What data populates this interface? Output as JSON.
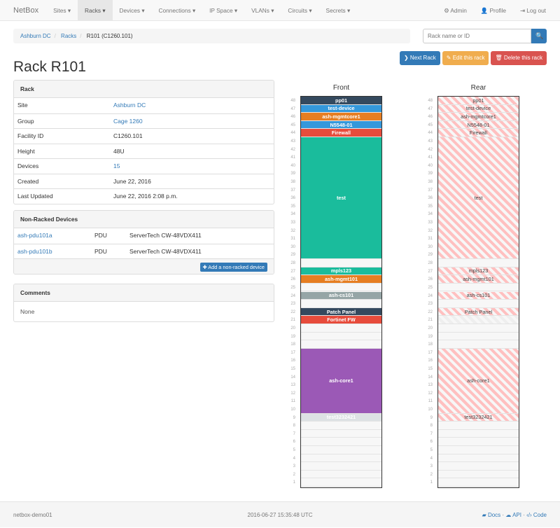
{
  "nav": {
    "brand": "NetBox",
    "items": [
      "Sites ▾",
      "Racks ▾",
      "Devices ▾",
      "Connections ▾",
      "IP Space ▾",
      "VLANs ▾",
      "Circuits ▾",
      "Secrets ▾"
    ],
    "active": 1,
    "admin": "⚙ Admin",
    "profile": "👤 Profile",
    "logout": "⇥ Log out"
  },
  "breadcrumb": [
    "Ashburn DC",
    "Racks",
    "R101 (C1260.101)"
  ],
  "search": {
    "placeholder": "Rack name or ID",
    "button": "🔍"
  },
  "actions": {
    "next": "❯ Next Rack",
    "edit": "✎ Edit this rack",
    "delete": "🗑 Delete this rack"
  },
  "title": "Rack R101",
  "rack_panel": {
    "title": "Rack",
    "rows": [
      {
        "k": "Site",
        "v": "Ashburn DC",
        "link": true
      },
      {
        "k": "Group",
        "v": "Cage 1260",
        "link": true
      },
      {
        "k": "Facility ID",
        "v": "C1260.101"
      },
      {
        "k": "Height",
        "v": "48U"
      },
      {
        "k": "Devices",
        "v": "15",
        "link": true
      },
      {
        "k": "Created",
        "v": "June 22, 2016"
      },
      {
        "k": "Last Updated",
        "v": "June 22, 2016 2:08 p.m."
      }
    ]
  },
  "nonracked": {
    "title": "Non-Racked Devices",
    "rows": [
      [
        "ash-pdu101a",
        "PDU",
        "ServerTech CW-48VDX411"
      ],
      [
        "ash-pdu101b",
        "PDU",
        "ServerTech CW-48VDX411"
      ]
    ],
    "add": "✚ Add a non-racked device"
  },
  "comments": {
    "title": "Comments",
    "body": "None"
  },
  "elevation": {
    "height_u": 48,
    "front_title": "Front",
    "rear_title": "Rear",
    "front": [
      {
        "name": "pp01",
        "top": 48,
        "u": 1,
        "color": "#34495e"
      },
      {
        "name": "test-device",
        "top": 47,
        "u": 1,
        "color": "#3498db"
      },
      {
        "name": "ash-mgmtcore1",
        "top": 46,
        "u": 1,
        "color": "#e67e22"
      },
      {
        "name": "N5548-01",
        "top": 45,
        "u": 1,
        "color": "#3498db"
      },
      {
        "name": "Firewall",
        "top": 44,
        "u": 1,
        "color": "#e74c3c"
      },
      {
        "name": "test",
        "top": 43,
        "u": 15,
        "color": "#1abc9c"
      },
      {
        "name": "mpls123",
        "top": 27,
        "u": 1,
        "color": "#1abc9c"
      },
      {
        "name": "ash-mgmt101",
        "top": 26,
        "u": 1,
        "color": "#e67e22"
      },
      {
        "name": "ash-cs101",
        "top": 24,
        "u": 1,
        "color": "#95a5a6"
      },
      {
        "name": "Patch Panel",
        "top": 22,
        "u": 1,
        "color": "#34495e"
      },
      {
        "name": "Fortinet FW",
        "top": 21,
        "u": 1,
        "color": "#e74c3c"
      },
      {
        "name": "ash-core1",
        "top": 17,
        "u": 8,
        "color": "#9b59b6"
      },
      {
        "name": "test3232421",
        "top": 9,
        "u": 1,
        "color": "#dde2e4"
      }
    ],
    "rear": [
      {
        "name": "pp01",
        "top": 48,
        "u": 1
      },
      {
        "name": "test-device",
        "top": 47,
        "u": 1
      },
      {
        "name": "ash-mgmtcore1",
        "top": 46,
        "u": 1
      },
      {
        "name": "N5548-01",
        "top": 45,
        "u": 1
      },
      {
        "name": "Firewall",
        "top": 44,
        "u": 1
      },
      {
        "name": "test",
        "top": 43,
        "u": 15
      },
      {
        "name": "mpls123",
        "top": 27,
        "u": 1
      },
      {
        "name": "ash-mgmt101",
        "top": 26,
        "u": 1
      },
      {
        "name": "ash-cs101",
        "top": 24,
        "u": 1
      },
      {
        "name": "Patch Panel",
        "top": 22,
        "u": 1
      },
      {
        "name": "",
        "top": 21,
        "u": 1,
        "faint": true
      },
      {
        "name": "ash-core1",
        "top": 17,
        "u": 8
      },
      {
        "name": "test3232421",
        "top": 9,
        "u": 1
      }
    ]
  },
  "footer": {
    "host": "netbox-demo01",
    "time": "2016-06-27 15:35:48 UTC",
    "docs": "Docs",
    "api": "API",
    "code": "Code"
  }
}
